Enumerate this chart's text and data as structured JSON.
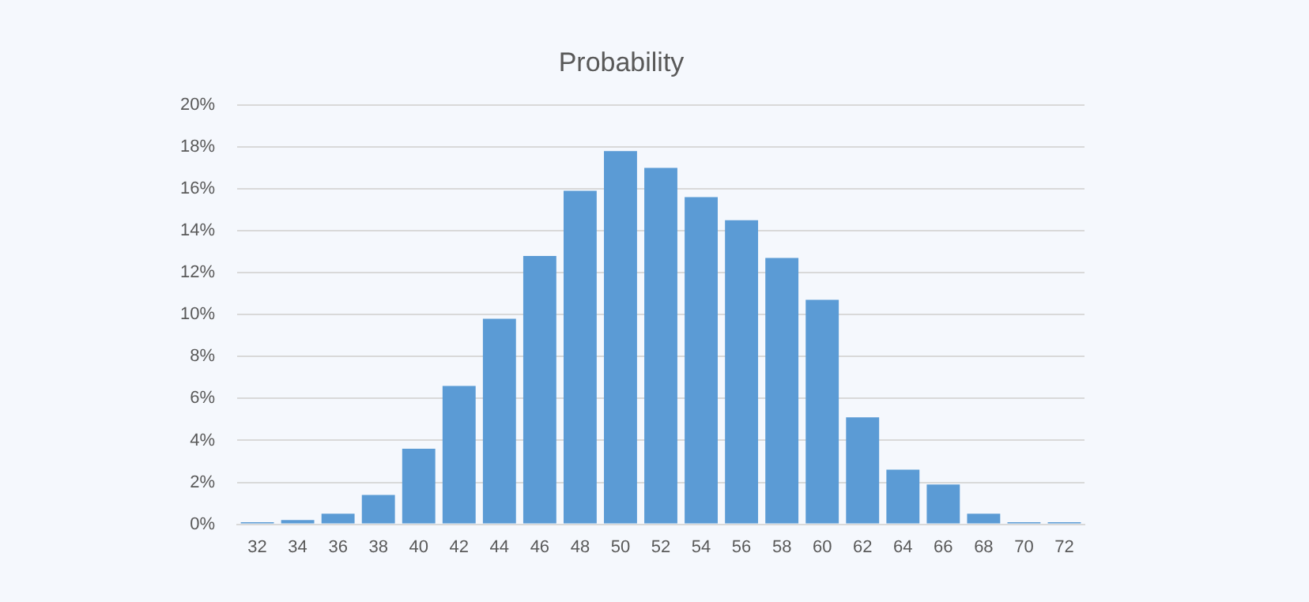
{
  "chart_data": {
    "type": "bar",
    "title": "Probability",
    "categories": [
      "32",
      "34",
      "36",
      "38",
      "40",
      "42",
      "44",
      "46",
      "48",
      "50",
      "52",
      "54",
      "56",
      "58",
      "60",
      "62",
      "64",
      "66",
      "68",
      "70",
      "72"
    ],
    "values": [
      0.1,
      0.2,
      0.5,
      1.4,
      3.6,
      6.6,
      9.8,
      12.8,
      15.9,
      17.8,
      17.0,
      15.6,
      14.5,
      12.7,
      10.7,
      5.1,
      2.6,
      1.9,
      0.5,
      0.1,
      0.1
    ],
    "color": "#5b9bd5",
    "ylim": [
      0,
      20
    ],
    "yticks": [
      {
        "value": 0,
        "label": "0%"
      },
      {
        "value": 2,
        "label": "2%"
      },
      {
        "value": 4,
        "label": "4%"
      },
      {
        "value": 6,
        "label": "6%"
      },
      {
        "value": 8,
        "label": "8%"
      },
      {
        "value": 10,
        "label": "10%"
      },
      {
        "value": 12,
        "label": "12%"
      },
      {
        "value": 14,
        "label": "14%"
      },
      {
        "value": 16,
        "label": "16%"
      },
      {
        "value": 18,
        "label": "18%"
      },
      {
        "value": 20,
        "label": "20%"
      }
    ],
    "grid": "y"
  }
}
